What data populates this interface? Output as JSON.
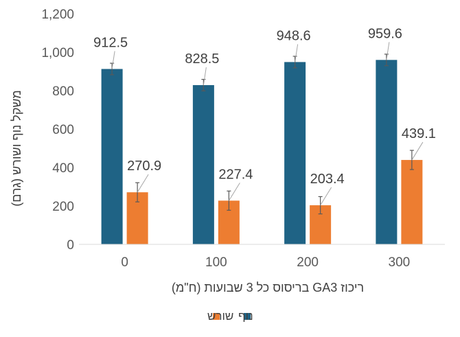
{
  "chart_data": {
    "type": "bar",
    "title": "",
    "xlabel": "ריכוז GA3 בריסוס כל 3 שבועות (ח\"מ)",
    "ylabel": "משקל נוף ושורש (גרם)",
    "categories": [
      "0",
      "100",
      "200",
      "300"
    ],
    "series": [
      {
        "name": "נוף",
        "color": "#1F6385",
        "values": [
          912.5,
          828.5,
          948.6,
          959.6
        ],
        "labels": [
          "912.5",
          "828.5",
          "948.6",
          "959.6"
        ],
        "error": [
          30,
          30,
          30,
          30
        ]
      },
      {
        "name": "שורש",
        "color": "#ED7D31",
        "values": [
          270.9,
          227.4,
          203.4,
          439.1
        ],
        "labels": [
          "270.9",
          "227.4",
          "203.4",
          "439.1"
        ],
        "error": [
          50,
          50,
          45,
          50
        ]
      }
    ],
    "ylim": [
      0,
      1200
    ],
    "yticks": [
      0,
      200,
      400,
      600,
      800,
      1000,
      1200
    ],
    "ytick_labels": [
      "0",
      "200",
      "400",
      "600",
      "800",
      "1,000",
      "1,200"
    ],
    "grid": false,
    "legend": "bottom"
  }
}
